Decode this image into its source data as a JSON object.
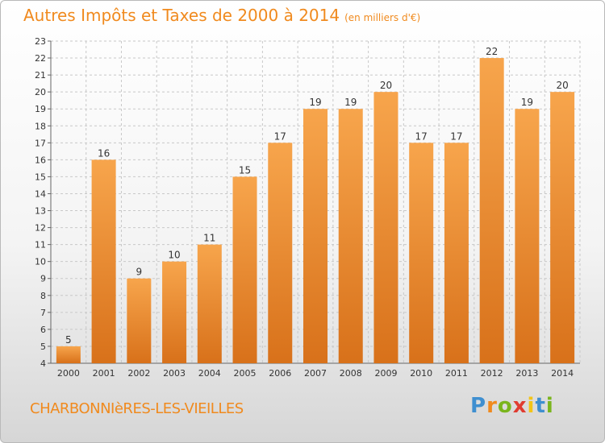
{
  "header": {
    "title": "Autres Impôts et Taxes de 2000 à 2014",
    "unit": "(en milliers d'€)"
  },
  "footer": {
    "place": "CHARBONNIèRES-LES-VIEILLES",
    "brand": [
      "P",
      "r",
      "o",
      "x",
      "i",
      "t",
      "i"
    ],
    "brand_colors": [
      "#3f8fd0",
      "#f08a1e",
      "#7ab51d",
      "#e03c31",
      "#f3c418",
      "#3f8fd0",
      "#7ab51d"
    ]
  },
  "colors": {
    "bar_top": "#f7a54c",
    "bar_bottom": "#d8711a",
    "grid": "#c8c8c8",
    "text": "#333333",
    "title": "#f08a1e"
  },
  "chart_data": {
    "type": "bar",
    "title": "Autres Impôts et Taxes de 2000 à 2014",
    "subtitle": "(en milliers d'€)",
    "categories": [
      "2000",
      "2001",
      "2002",
      "2003",
      "2004",
      "2005",
      "2006",
      "2007",
      "2008",
      "2009",
      "2010",
      "2011",
      "2012",
      "2013",
      "2014"
    ],
    "values": [
      5,
      16,
      9,
      10,
      11,
      15,
      17,
      19,
      19,
      20,
      17,
      17,
      22,
      19,
      20
    ],
    "ylim": [
      4,
      23
    ],
    "yticks": [
      4,
      5,
      6,
      7,
      8,
      9,
      10,
      11,
      12,
      13,
      14,
      15,
      16,
      17,
      18,
      19,
      20,
      21,
      22,
      23
    ],
    "grid": true,
    "data_labels": true,
    "xlabel": "",
    "ylabel": ""
  }
}
